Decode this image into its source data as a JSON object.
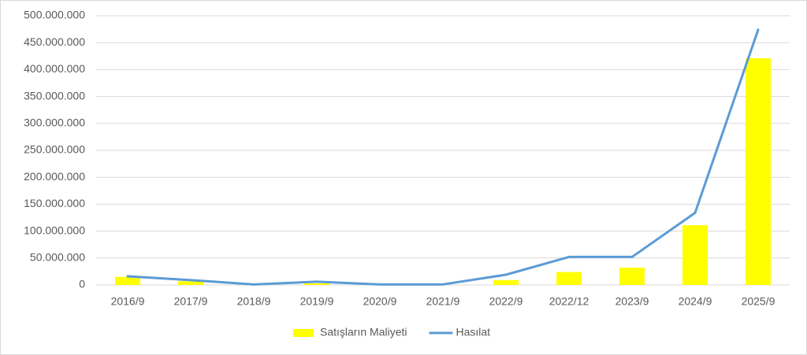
{
  "chart_data": {
    "type": "bar",
    "categories": [
      "2016/9",
      "2017/9",
      "2018/9",
      "2019/9",
      "2020/9",
      "2021/9",
      "2022/9",
      "2022/12",
      "2023/9",
      "2024/9",
      "2025/9"
    ],
    "series": [
      {
        "name": "Satışların Maliyeti",
        "type": "bar",
        "color": "#ffff00",
        "values": [
          15000000,
          7000000,
          1000000,
          3000000,
          0,
          0,
          9000000,
          24000000,
          32000000,
          111000000,
          421000000
        ]
      },
      {
        "name": "Hasılat",
        "type": "line",
        "color": "#5b9bd5",
        "values": [
          16000000,
          9000000,
          1000000,
          6000000,
          1000000,
          1000000,
          19000000,
          52000000,
          52000000,
          134000000,
          474000000
        ]
      }
    ],
    "ylim": [
      0,
      500000000
    ],
    "yticks": [
      0,
      {
        "value": 50000000,
        "label": "50.000.000"
      },
      {
        "value": 100000000,
        "label": "100.000.000"
      },
      {
        "value": 150000000,
        "label": "150.000.000"
      },
      {
        "value": 200000000,
        "label": "200.000.000"
      },
      {
        "value": 250000000,
        "label": "250.000.000"
      },
      {
        "value": 300000000,
        "label": "300.000.000"
      },
      {
        "value": 350000000,
        "label": "350.000.000"
      },
      {
        "value": 400000000,
        "label": "400.000.000"
      },
      {
        "value": 450000000,
        "label": "450.000.000"
      },
      {
        "value": 500000000,
        "label": "500.000.000"
      }
    ],
    "grid": true,
    "legend": "bottom"
  }
}
